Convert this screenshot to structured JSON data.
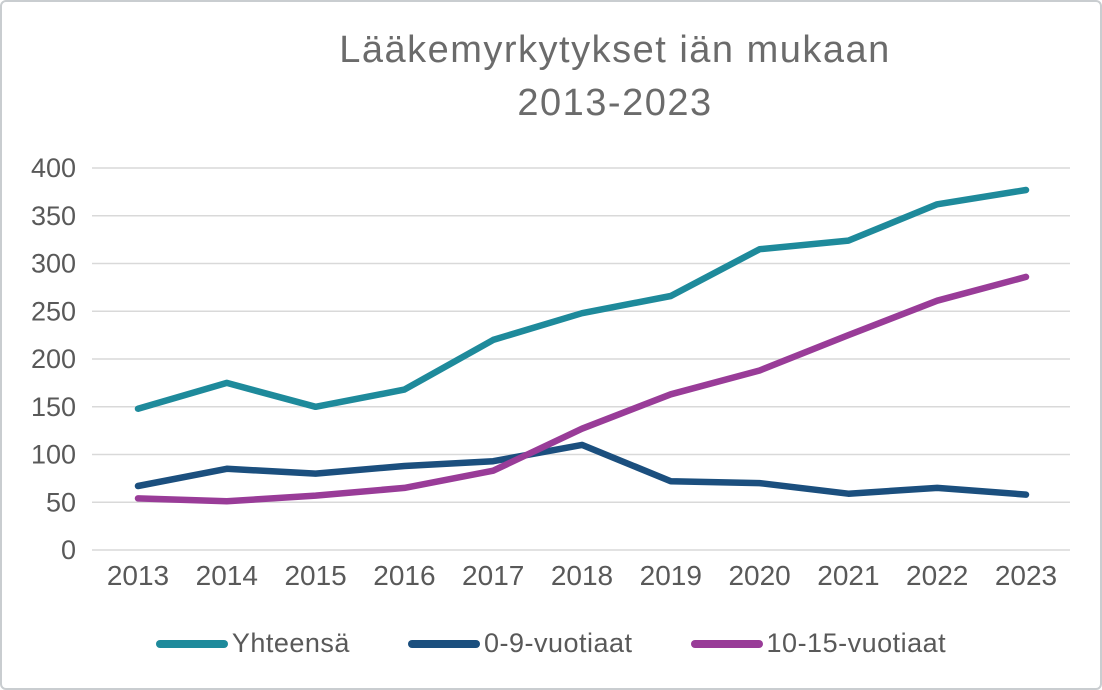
{
  "title": {
    "line1": "Lääkemyrkytykset iän mukaan",
    "line2": "2013-2023"
  },
  "colors": {
    "background": "#ffffff",
    "frame_border": "#c9cdd0",
    "gridline": "#d9d9d9",
    "axis_text": "#595959",
    "title_text": "#6b6b6b",
    "series_total": "#1e8a9b",
    "series_0_9": "#1b4f7e",
    "series_10_15": "#993c98"
  },
  "chart_data": {
    "type": "line",
    "title": "Lääkemyrkytykset iän mukaan 2013-2023",
    "categories": [
      "2013",
      "2014",
      "2015",
      "2016",
      "2017",
      "2018",
      "2019",
      "2020",
      "2021",
      "2022",
      "2023"
    ],
    "series": [
      {
        "name": "Yhteensä",
        "color": "#1e8a9b",
        "values": [
          148,
          175,
          150,
          168,
          220,
          248,
          266,
          315,
          324,
          362,
          377
        ]
      },
      {
        "name": "0-9-vuotiaat",
        "color": "#1b4f7e",
        "values": [
          67,
          85,
          80,
          88,
          93,
          110,
          72,
          70,
          59,
          65,
          58
        ]
      },
      {
        "name": "10-15-vuotiaat",
        "color": "#993c98",
        "values": [
          54,
          51,
          57,
          65,
          83,
          127,
          163,
          188,
          225,
          261,
          286
        ]
      }
    ],
    "xlabel": "",
    "ylabel": "",
    "ylim": [
      0,
      400
    ],
    "yticks": [
      0,
      50,
      100,
      150,
      200,
      250,
      300,
      350,
      400
    ],
    "grid": true,
    "legend_position": "bottom"
  }
}
